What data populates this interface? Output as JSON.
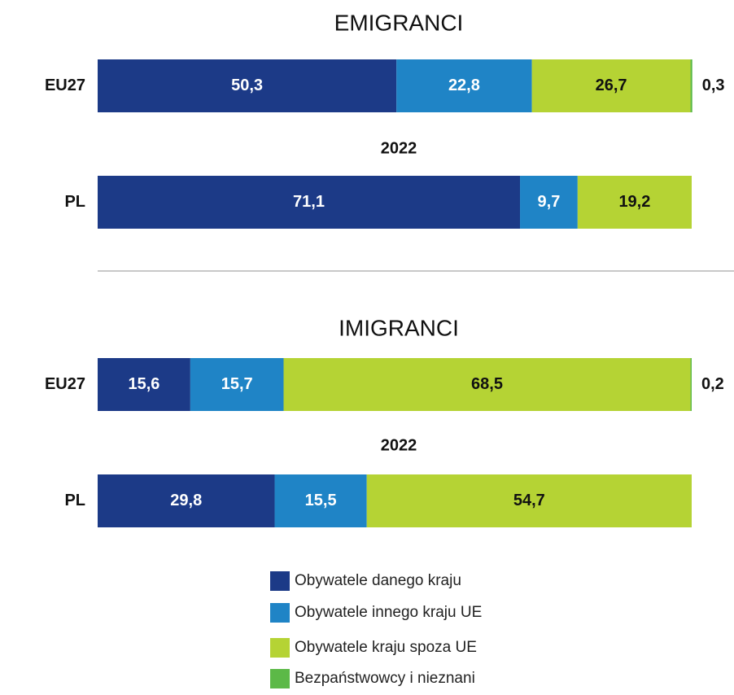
{
  "chart_data": {
    "type": "bar",
    "orientation": "horizontal",
    "stacked": true,
    "xlim": [
      0,
      100
    ],
    "series": [
      {
        "name": "Obywatele danego kraju",
        "color": "#1c3a87"
      },
      {
        "name": "Obywatele innego kraju UE",
        "color": "#1f84c6"
      },
      {
        "name": "Obywatele kraju spoza UE",
        "color": "#b5d334"
      },
      {
        "name": "Bezpaństwowcy i nieznani",
        "color": "#5cb947"
      }
    ],
    "panels": [
      {
        "title": "EMIGRANCI",
        "subtitle": "2022",
        "categories": [
          "EU27",
          "PL"
        ],
        "values": [
          [
            50.3,
            22.8,
            26.7,
            0.3
          ],
          [
            71.1,
            9.7,
            19.2,
            null
          ]
        ],
        "value_labels": [
          [
            "50,3",
            "22,8",
            "26,7",
            "0,3"
          ],
          [
            "71,1",
            "9,7",
            "19,2",
            null
          ]
        ]
      },
      {
        "title": "IMIGRANCI",
        "subtitle": "2022",
        "categories": [
          "EU27",
          "PL"
        ],
        "values": [
          [
            15.6,
            15.7,
            68.5,
            0.2
          ],
          [
            29.8,
            15.5,
            54.7,
            null
          ]
        ],
        "value_labels": [
          [
            "15,6",
            "15,7",
            "68,5",
            "0,2"
          ],
          [
            "29,8",
            "15,5",
            "54,7",
            null
          ]
        ]
      }
    ]
  }
}
